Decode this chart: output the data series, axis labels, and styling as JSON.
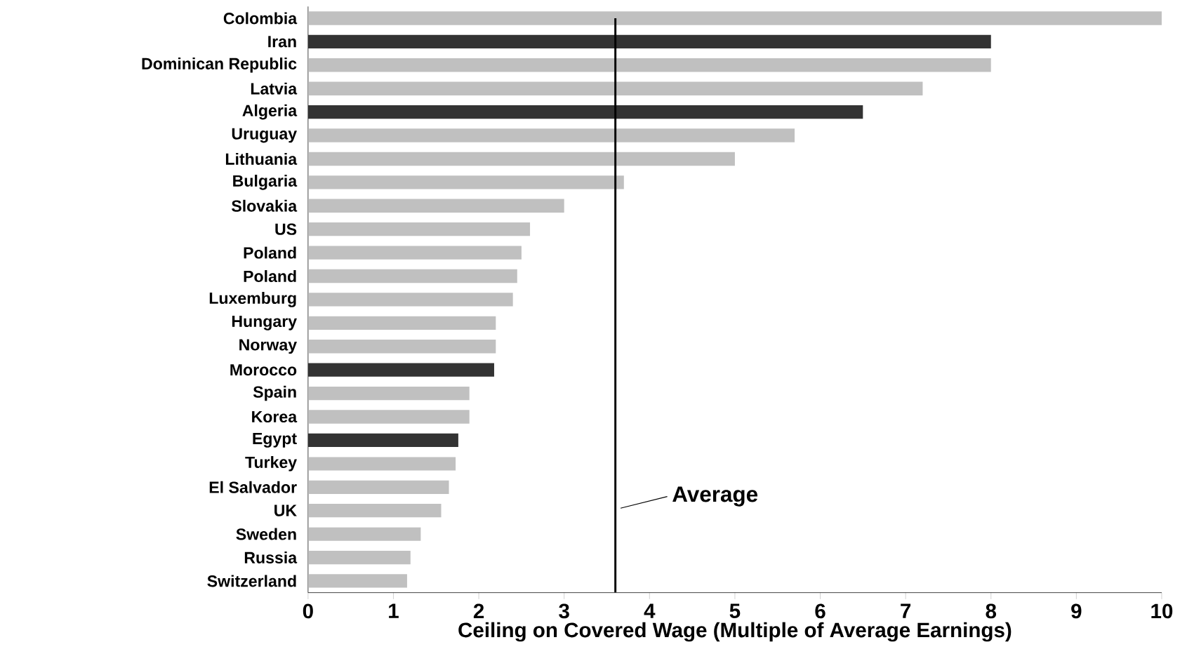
{
  "chart_data": {
    "type": "bar",
    "orientation": "horizontal",
    "xlabel": "Ceiling on Covered Wage (Multiple of Average Earnings)",
    "categories": [
      "Colombia",
      "Iran",
      "Dominican Republic",
      "Latvia",
      "Algeria",
      "Uruguay",
      "Lithuania",
      "Bulgaria",
      "Slovakia",
      "US",
      "Poland",
      "Poland",
      "Luxemburg",
      "Hungary",
      "Norway",
      "Morocco",
      "Spain",
      "Korea",
      "Egypt",
      "Turkey",
      "El Salvador",
      "UK",
      "Sweden",
      "Russia",
      "Switzerland"
    ],
    "values": [
      10,
      8.0,
      8.0,
      7.2,
      6.5,
      5.7,
      5.0,
      3.7,
      3.0,
      2.6,
      2.5,
      2.45,
      2.4,
      2.2,
      2.2,
      2.18,
      1.89,
      1.89,
      1.76,
      1.73,
      1.65,
      1.56,
      1.32,
      1.2,
      1.16
    ],
    "colors": [
      "#c0c0c0",
      "#333333",
      "#c0c0c0",
      "#c0c0c0",
      "#333333",
      "#c0c0c0",
      "#c0c0c0",
      "#c0c0c0",
      "#c0c0c0",
      "#c0c0c0",
      "#c0c0c0",
      "#c0c0c0",
      "#c0c0c0",
      "#c0c0c0",
      "#c0c0c0",
      "#333333",
      "#c0c0c0",
      "#c0c0c0",
      "#333333",
      "#c0c0c0",
      "#c0c0c0",
      "#c0c0c0",
      "#c0c0c0",
      "#c0c0c0",
      "#c0c0c0"
    ],
    "xlim": [
      0,
      10
    ],
    "xticks": [
      0,
      1,
      2,
      3,
      4,
      5,
      6,
      7,
      8,
      9,
      10
    ],
    "ref_lines": [
      {
        "axis": "x",
        "value": 3.6,
        "label": "Average",
        "color": "#000000"
      }
    ]
  }
}
